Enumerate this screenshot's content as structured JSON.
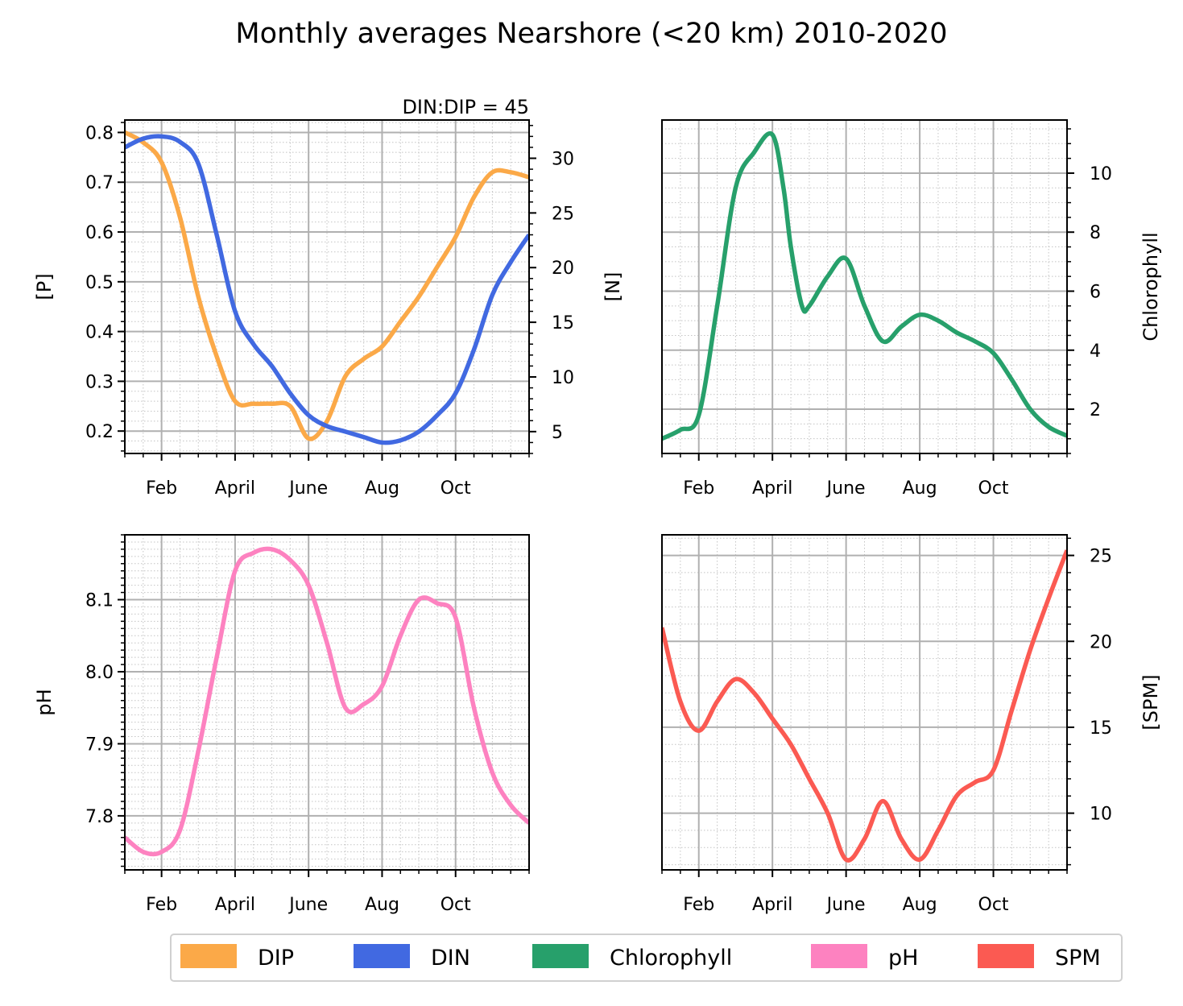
{
  "figure": {
    "title": "Monthly averages Nearshore (<20 km) 2010-2020"
  },
  "colors": {
    "DIP": "#fba948",
    "DIN": "#4169e1",
    "Chlorophyll": "#27a06b",
    "pH": "#fd82c0",
    "SPM": "#fb5a52"
  },
  "legend": {
    "placement": "bottom-center",
    "entries": [
      "DIP",
      "DIN",
      "Chlorophyll",
      "pH",
      "SPM"
    ]
  },
  "chart_data": [
    {
      "type": "line",
      "panel": "top-left",
      "annotation": "DIN:DIP = 45",
      "x_tick_labels": [
        "Feb",
        "April",
        "June",
        "Aug",
        "Oct"
      ],
      "x_tick_values": [
        2,
        4,
        6,
        8,
        10
      ],
      "xlim": [
        1,
        12
      ],
      "grid": true,
      "series": [
        {
          "name": "DIP",
          "axis": "left",
          "x": [
            1,
            1.5,
            2,
            2.5,
            3,
            3.5,
            4,
            4.5,
            5,
            5.5,
            6,
            6.5,
            7,
            7.5,
            8,
            8.5,
            9,
            9.5,
            10,
            10.5,
            11,
            11.5,
            12
          ],
          "y": [
            0.8,
            0.78,
            0.74,
            0.63,
            0.47,
            0.35,
            0.26,
            0.255,
            0.255,
            0.25,
            0.185,
            0.22,
            0.31,
            0.345,
            0.37,
            0.42,
            0.47,
            0.53,
            0.59,
            0.67,
            0.72,
            0.72,
            0.71
          ]
        },
        {
          "name": "DIN",
          "axis": "right",
          "x": [
            1,
            1.5,
            2,
            2.5,
            3,
            3.5,
            4,
            4.5,
            5,
            5.5,
            6,
            6.5,
            7,
            7.5,
            8,
            8.5,
            9,
            9.5,
            10,
            10.5,
            11,
            11.5,
            12
          ],
          "y": [
            31,
            31.8,
            32,
            31.5,
            29.5,
            23,
            16,
            13,
            11,
            8.5,
            6.5,
            5.5,
            5,
            4.5,
            4,
            4.2,
            5,
            6.5,
            8.5,
            12.5,
            17.5,
            20.5,
            23
          ]
        }
      ],
      "y_left": {
        "label": "[P]",
        "ylim": [
          0.155,
          0.825
        ],
        "ticks": [
          0.2,
          0.3,
          0.4,
          0.5,
          0.6,
          0.7,
          0.8
        ],
        "tick_labels": [
          "0.2",
          "0.3",
          "0.4",
          "0.5",
          "0.6",
          "0.7",
          "0.8"
        ],
        "minor_step": 0.02
      },
      "y_right": {
        "label": "[N]",
        "ylim": [
          3,
          33.5
        ],
        "ticks": [
          5,
          10,
          15,
          20,
          25,
          30
        ],
        "tick_labels": [
          "5",
          "10",
          "15",
          "20",
          "25",
          "30"
        ],
        "minor_step": 1
      }
    },
    {
      "type": "line",
      "panel": "top-right",
      "x_tick_labels": [
        "Feb",
        "April",
        "June",
        "Aug",
        "Oct"
      ],
      "x_tick_values": [
        2,
        4,
        6,
        8,
        10
      ],
      "xlim": [
        1,
        12
      ],
      "grid": true,
      "series": [
        {
          "name": "Chlorophyll",
          "axis": "right",
          "x": [
            1,
            1.5,
            2,
            2.5,
            3,
            3.5,
            4,
            4.3,
            4.5,
            4.8,
            5,
            5.5,
            6,
            6.5,
            7,
            7.5,
            8,
            8.5,
            9,
            9.5,
            10,
            10.5,
            11,
            11.5,
            12
          ],
          "y": [
            1,
            1.3,
            1.8,
            5.5,
            9.5,
            10.7,
            11.3,
            9.5,
            7.5,
            5.5,
            5.5,
            6.5,
            7.1,
            5.5,
            4.3,
            4.8,
            5.2,
            5,
            4.6,
            4.3,
            3.9,
            3,
            2,
            1.4,
            1.1
          ]
        }
      ],
      "y_right": {
        "label": "Chlorophyll",
        "ylim": [
          0.5,
          11.8
        ],
        "ticks": [
          2,
          4,
          6,
          8,
          10
        ],
        "tick_labels": [
          "2",
          "4",
          "6",
          "8",
          "10"
        ],
        "minor_step": 0.5
      }
    },
    {
      "type": "line",
      "panel": "bottom-left",
      "x_tick_labels": [
        "Feb",
        "April",
        "June",
        "Aug",
        "Oct"
      ],
      "x_tick_values": [
        2,
        4,
        6,
        8,
        10
      ],
      "xlim": [
        1,
        12
      ],
      "grid": true,
      "series": [
        {
          "name": "pH",
          "axis": "left",
          "x": [
            1,
            1.5,
            2,
            2.5,
            3,
            3.5,
            4,
            4.5,
            5,
            5.5,
            6,
            6.5,
            7,
            7.5,
            8,
            8.5,
            9,
            9.5,
            10,
            10.5,
            11,
            11.5,
            12
          ],
          "y": [
            7.77,
            7.75,
            7.75,
            7.78,
            7.89,
            8.02,
            8.14,
            8.165,
            8.17,
            8.155,
            8.12,
            8.04,
            7.95,
            7.955,
            7.98,
            8.05,
            8.1,
            8.095,
            8.075,
            7.95,
            7.86,
            7.815,
            7.79
          ]
        }
      ],
      "y_left": {
        "label": "pH",
        "ylim": [
          7.725,
          8.19
        ],
        "ticks": [
          7.8,
          7.9,
          8.0,
          8.1
        ],
        "tick_labels": [
          "7.8",
          "7.9",
          "8.0",
          "8.1"
        ],
        "minor_step": 0.01
      }
    },
    {
      "type": "line",
      "panel": "bottom-right",
      "x_tick_labels": [
        "Feb",
        "April",
        "June",
        "Aug",
        "Oct"
      ],
      "x_tick_values": [
        2,
        4,
        6,
        8,
        10
      ],
      "xlim": [
        1,
        12
      ],
      "grid": true,
      "series": [
        {
          "name": "SPM",
          "axis": "right",
          "x": [
            1,
            1.5,
            2,
            2.5,
            3,
            3.5,
            4,
            4.5,
            5,
            5.5,
            6,
            6.5,
            7,
            7.5,
            8,
            8.5,
            9,
            9.5,
            10,
            10.5,
            11,
            11.5,
            12
          ],
          "y": [
            20.8,
            16.5,
            14.8,
            16.5,
            17.8,
            17,
            15.5,
            14,
            12,
            10,
            7.3,
            8.5,
            10.7,
            8.5,
            7.3,
            9,
            11,
            11.8,
            12.5,
            16,
            19.5,
            22.5,
            25.3
          ]
        }
      ],
      "y_right": {
        "label": "[SPM]",
        "ylim": [
          6.7,
          26.2
        ],
        "ticks": [
          10,
          15,
          20,
          25
        ],
        "tick_labels": [
          "10",
          "15",
          "20",
          "25"
        ],
        "minor_step": 1
      }
    }
  ]
}
